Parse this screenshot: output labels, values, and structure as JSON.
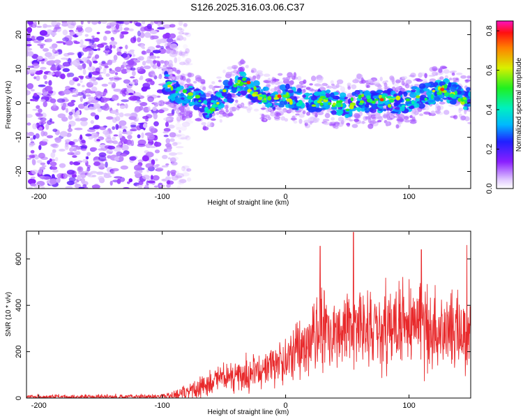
{
  "title": "S126.2025.316.03.06.C37",
  "chart_data": [
    {
      "type": "heatmap",
      "name": "spectrogram",
      "xlabel": "Height of straight line (km)",
      "ylabel": "Frequency (Hz)",
      "xlim": [
        -210,
        150
      ],
      "ylim": [
        -25,
        24
      ],
      "xticks": [
        "-200",
        "-100",
        "0",
        "100"
      ],
      "yticks": [
        "-20",
        "-10",
        "0",
        "10",
        "20"
      ],
      "colorbar": {
        "label": "Normalized spectral amplitude",
        "range": [
          0.0,
          0.85
        ],
        "ticks": [
          "0.0",
          "0.2",
          "0.4",
          "0.6",
          "0.8"
        ]
      },
      "noise_region": [
        -210,
        -90
      ],
      "signal_track": {
        "x": [
          -98,
          -90,
          -80,
          -70,
          -62,
          -55,
          -48,
          -42,
          -35,
          -28,
          -20,
          -10,
          0,
          10,
          20,
          30,
          40,
          50,
          60,
          70,
          80,
          90,
          100,
          110,
          120,
          130,
          140,
          150
        ],
        "y": [
          6,
          3,
          2,
          1,
          -2,
          1,
          3,
          4,
          6,
          4,
          2,
          1,
          2,
          1,
          0,
          1,
          0,
          -1,
          1,
          0,
          1,
          0,
          1,
          2,
          3,
          4,
          2,
          1
        ]
      }
    },
    {
      "type": "line",
      "name": "snr",
      "xlabel": "Height of straight line (km)",
      "ylabel": "SNR (10 * v/v)",
      "xlim": [
        -210,
        150
      ],
      "ylim": [
        0,
        720
      ],
      "xticks": [
        "-200",
        "-100",
        "0",
        "100"
      ],
      "yticks": [
        "0",
        "200",
        "400",
        "600"
      ],
      "color": "#e8292b",
      "envelope": {
        "x": [
          -210,
          -100,
          -90,
          -80,
          -70,
          -60,
          -50,
          -40,
          -30,
          -20,
          -10,
          0,
          10,
          20,
          30,
          40,
          50,
          60,
          70,
          80,
          90,
          100,
          110,
          120,
          130,
          140,
          150
        ],
        "mean": [
          5,
          6,
          12,
          25,
          45,
          70,
          90,
          100,
          110,
          120,
          140,
          170,
          200,
          240,
          270,
          290,
          300,
          300,
          290,
          290,
          300,
          310,
          300,
          290,
          300,
          290,
          280
        ],
        "spread": [
          12,
          14,
          25,
          40,
          60,
          70,
          80,
          90,
          95,
          100,
          110,
          130,
          160,
          200,
          230,
          240,
          240,
          240,
          230,
          230,
          240,
          240,
          240,
          230,
          230,
          230,
          230
        ]
      },
      "peaks": [
        {
          "x": 55,
          "y": 715
        },
        {
          "x": 147,
          "y": 660
        },
        {
          "x": 28,
          "y": 655
        },
        {
          "x": 110,
          "y": 640
        }
      ]
    }
  ]
}
